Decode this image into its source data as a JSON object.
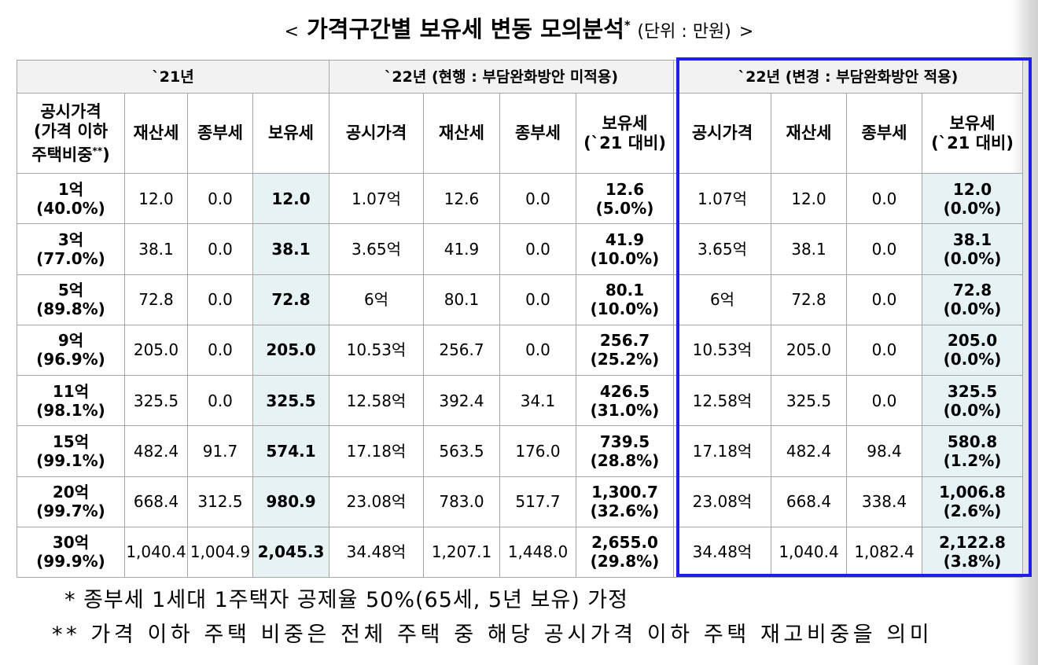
{
  "title": {
    "open": "<",
    "main": "가격구간별 보유세 변동 모의분석",
    "mark": "*",
    "unit": "(단위 : 만원)",
    "close": ">"
  },
  "groups": {
    "y21": "`21년",
    "y22_current": "`22년 (현행 : 부담완화방안 미적용)",
    "y22_changed": "`22년 (변경 : 부담완화방안 적용)"
  },
  "headers": {
    "price_l1": "공시가격",
    "price_l2": "(가격 이하",
    "price_l3": "주택비중",
    "price_mark": "**",
    "price_l3_end": ")",
    "property_tax": "재산세",
    "comprehensive_tax": "종부세",
    "holding_tax": "보유세",
    "public_price": "공시가격",
    "holding_vs_l1": "보유세",
    "holding_vs_l2": "(`21 대비)"
  },
  "rows": [
    {
      "price": "1억",
      "share": "(40.0%)",
      "y21": {
        "property": "12.0",
        "comp": "0.0",
        "holding": "12.0"
      },
      "cur": {
        "price": "1.07억",
        "property": "12.6",
        "comp": "0.0",
        "holding": "12.6",
        "change": "(5.0%)"
      },
      "chg": {
        "price": "1.07억",
        "property": "12.0",
        "comp": "0.0",
        "holding": "12.0",
        "change": "(0.0%)"
      }
    },
    {
      "price": "3억",
      "share": "(77.0%)",
      "y21": {
        "property": "38.1",
        "comp": "0.0",
        "holding": "38.1"
      },
      "cur": {
        "price": "3.65억",
        "property": "41.9",
        "comp": "0.0",
        "holding": "41.9",
        "change": "(10.0%)"
      },
      "chg": {
        "price": "3.65억",
        "property": "38.1",
        "comp": "0.0",
        "holding": "38.1",
        "change": "(0.0%)"
      }
    },
    {
      "price": "5억",
      "share": "(89.8%)",
      "y21": {
        "property": "72.8",
        "comp": "0.0",
        "holding": "72.8"
      },
      "cur": {
        "price": "6억",
        "property": "80.1",
        "comp": "0.0",
        "holding": "80.1",
        "change": "(10.0%)"
      },
      "chg": {
        "price": "6억",
        "property": "72.8",
        "comp": "0.0",
        "holding": "72.8",
        "change": "(0.0%)"
      }
    },
    {
      "price": "9억",
      "share": "(96.9%)",
      "y21": {
        "property": "205.0",
        "comp": "0.0",
        "holding": "205.0"
      },
      "cur": {
        "price": "10.53억",
        "property": "256.7",
        "comp": "0.0",
        "holding": "256.7",
        "change": "(25.2%)"
      },
      "chg": {
        "price": "10.53억",
        "property": "205.0",
        "comp": "0.0",
        "holding": "205.0",
        "change": "(0.0%)"
      }
    },
    {
      "price": "11억",
      "share": "(98.1%)",
      "y21": {
        "property": "325.5",
        "comp": "0.0",
        "holding": "325.5"
      },
      "cur": {
        "price": "12.58억",
        "property": "392.4",
        "comp": "34.1",
        "holding": "426.5",
        "change": "(31.0%)"
      },
      "chg": {
        "price": "12.58억",
        "property": "325.5",
        "comp": "0.0",
        "holding": "325.5",
        "change": "(0.0%)"
      }
    },
    {
      "price": "15억",
      "share": "(99.1%)",
      "y21": {
        "property": "482.4",
        "comp": "91.7",
        "holding": "574.1"
      },
      "cur": {
        "price": "17.18억",
        "property": "563.5",
        "comp": "176.0",
        "holding": "739.5",
        "change": "(28.8%)"
      },
      "chg": {
        "price": "17.18억",
        "property": "482.4",
        "comp": "98.4",
        "holding": "580.8",
        "change": "(1.2%)"
      }
    },
    {
      "price": "20억",
      "share": "(99.7%)",
      "y21": {
        "property": "668.4",
        "comp": "312.5",
        "holding": "980.9"
      },
      "cur": {
        "price": "23.08억",
        "property": "783.0",
        "comp": "517.7",
        "holding": "1,300.7",
        "change": "(32.6%)"
      },
      "chg": {
        "price": "23.08억",
        "property": "668.4",
        "comp": "338.4",
        "holding": "1,006.8",
        "change": "(2.6%)"
      }
    },
    {
      "price": "30억",
      "share": "(99.9%)",
      "y21": {
        "property": "1,040.4",
        "comp": "1,004.9",
        "holding": "2,045.3"
      },
      "cur": {
        "price": "34.48억",
        "property": "1,207.1",
        "comp": "1,448.0",
        "holding": "2,655.0",
        "change": "(29.8%)"
      },
      "chg": {
        "price": "34.48억",
        "property": "1,040.4",
        "comp": "1,082.4",
        "holding": "2,122.8",
        "change": "(3.8%)"
      }
    }
  ],
  "notes": {
    "note1": "* 종부세 1세대 1주택자 공제율 50%(65세, 5년 보유) 가정",
    "note2": "** 가격 이하 주택 비중은 전체 주택 중 해당 공시가격 이하 주택 재고비중을 의미"
  }
}
